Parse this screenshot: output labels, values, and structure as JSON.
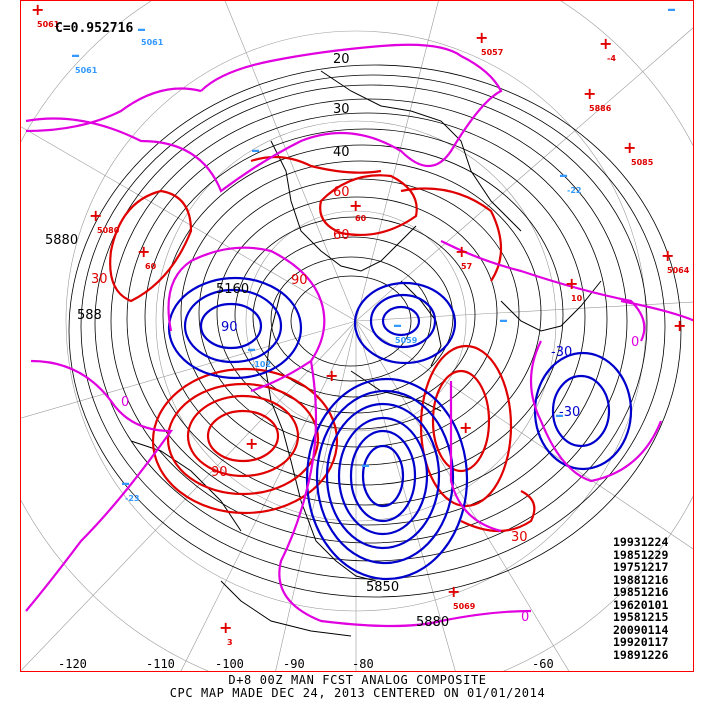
{
  "correlation": "C=0.952716",
  "analog_dates": [
    "19931224",
    "19851229",
    "19751217",
    "19881216",
    "19851216",
    "19620101",
    "19581215",
    "20090114",
    "19920117",
    "19891226"
  ],
  "longitude_labels": [
    "-120",
    "-110",
    "-100",
    "-90",
    "-80",
    "-60"
  ],
  "caption_line1": "D+8 00Z MAN FCST ANALOG COMPOSITE",
  "caption_line2": "CPC MAP MADE DEC 24, 2013 CENTERED ON 01/01/2014",
  "contour_labels": {
    "height_5880": "5880",
    "height_5880_alt": "588",
    "height_5160": "5160",
    "height_5880_se": "5880",
    "height_5850": "5850",
    "positive_30": "30",
    "positive_60": "60",
    "positive_90": "90",
    "negative_30": "-30",
    "negative_90": "90",
    "zero": "0",
    "lat_20": "20",
    "lat_30": "30",
    "lat_40": "40"
  },
  "marker_values": {
    "m1": "5061",
    "m2": "5061",
    "m3": "5057",
    "m4": "-4",
    "m5": "5886",
    "m6": "5085",
    "m7": "5080",
    "m8": "60",
    "m9": "60",
    "m10": "57",
    "m11": "5064",
    "m12": "10",
    "m13": "-22",
    "m14": "-23",
    "m15": "-102",
    "m16": "5059",
    "m17": "-23",
    "m18": "5069",
    "m19": "3"
  },
  "colors": {
    "positive_anomaly": "#e00000",
    "negative_anomaly": "#0000cc",
    "zero_line": "#e000e0",
    "height_contour": "#000000",
    "plus_marker": "#e00000",
    "minus_marker": "#3399ff",
    "frame": "#ff0000"
  }
}
